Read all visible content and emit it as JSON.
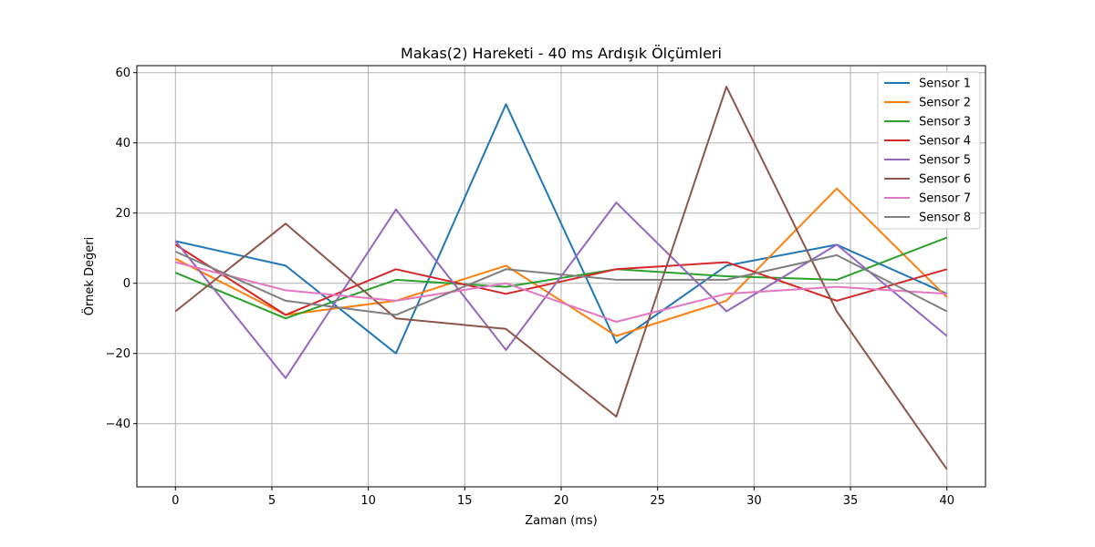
{
  "chart_data": {
    "type": "line",
    "title": "Makas(2) Hareketi - 40 ms Ardışık Ölçümleri",
    "xlabel": "Zaman (ms)",
    "ylabel": "Örnek Değeri",
    "xlim": [
      -2,
      42
    ],
    "ylim": [
      -58,
      62
    ],
    "xticks": [
      0,
      5,
      10,
      15,
      20,
      25,
      30,
      35,
      40
    ],
    "yticks": [
      -40,
      -20,
      0,
      20,
      40,
      60
    ],
    "grid": true,
    "legend_position": "top-right",
    "x": [
      0,
      5.71,
      11.43,
      17.14,
      22.86,
      28.57,
      34.29,
      40
    ],
    "series": [
      {
        "name": "Sensor 1",
        "color": "#1f77b4",
        "values": [
          12,
          5,
          -20,
          51,
          -17,
          5,
          11,
          -3
        ]
      },
      {
        "name": "Sensor 2",
        "color": "#ff7f0e",
        "values": [
          7,
          -9,
          -5,
          5,
          -15,
          -5,
          27,
          -4
        ]
      },
      {
        "name": "Sensor 3",
        "color": "#2ca02c",
        "values": [
          3,
          -10,
          1,
          -1,
          4,
          2,
          1,
          13
        ]
      },
      {
        "name": "Sensor 4",
        "color": "#d62728",
        "values": [
          11,
          -9,
          4,
          -3,
          4,
          6,
          -5,
          4
        ]
      },
      {
        "name": "Sensor 5",
        "color": "#9467bd",
        "values": [
          12,
          -27,
          21,
          -19,
          23,
          -8,
          11,
          -15
        ]
      },
      {
        "name": "Sensor 6",
        "color": "#8c564b",
        "values": [
          -8,
          17,
          -10,
          -13,
          -38,
          56,
          -8,
          -53
        ]
      },
      {
        "name": "Sensor 7",
        "color": "#e377c2",
        "values": [
          6,
          -2,
          -5,
          0,
          -11,
          -3,
          -1,
          -3
        ]
      },
      {
        "name": "Sensor 8",
        "color": "#7f7f7f",
        "values": [
          9,
          -5,
          -9,
          4,
          1,
          1,
          8,
          -8
        ]
      }
    ]
  }
}
